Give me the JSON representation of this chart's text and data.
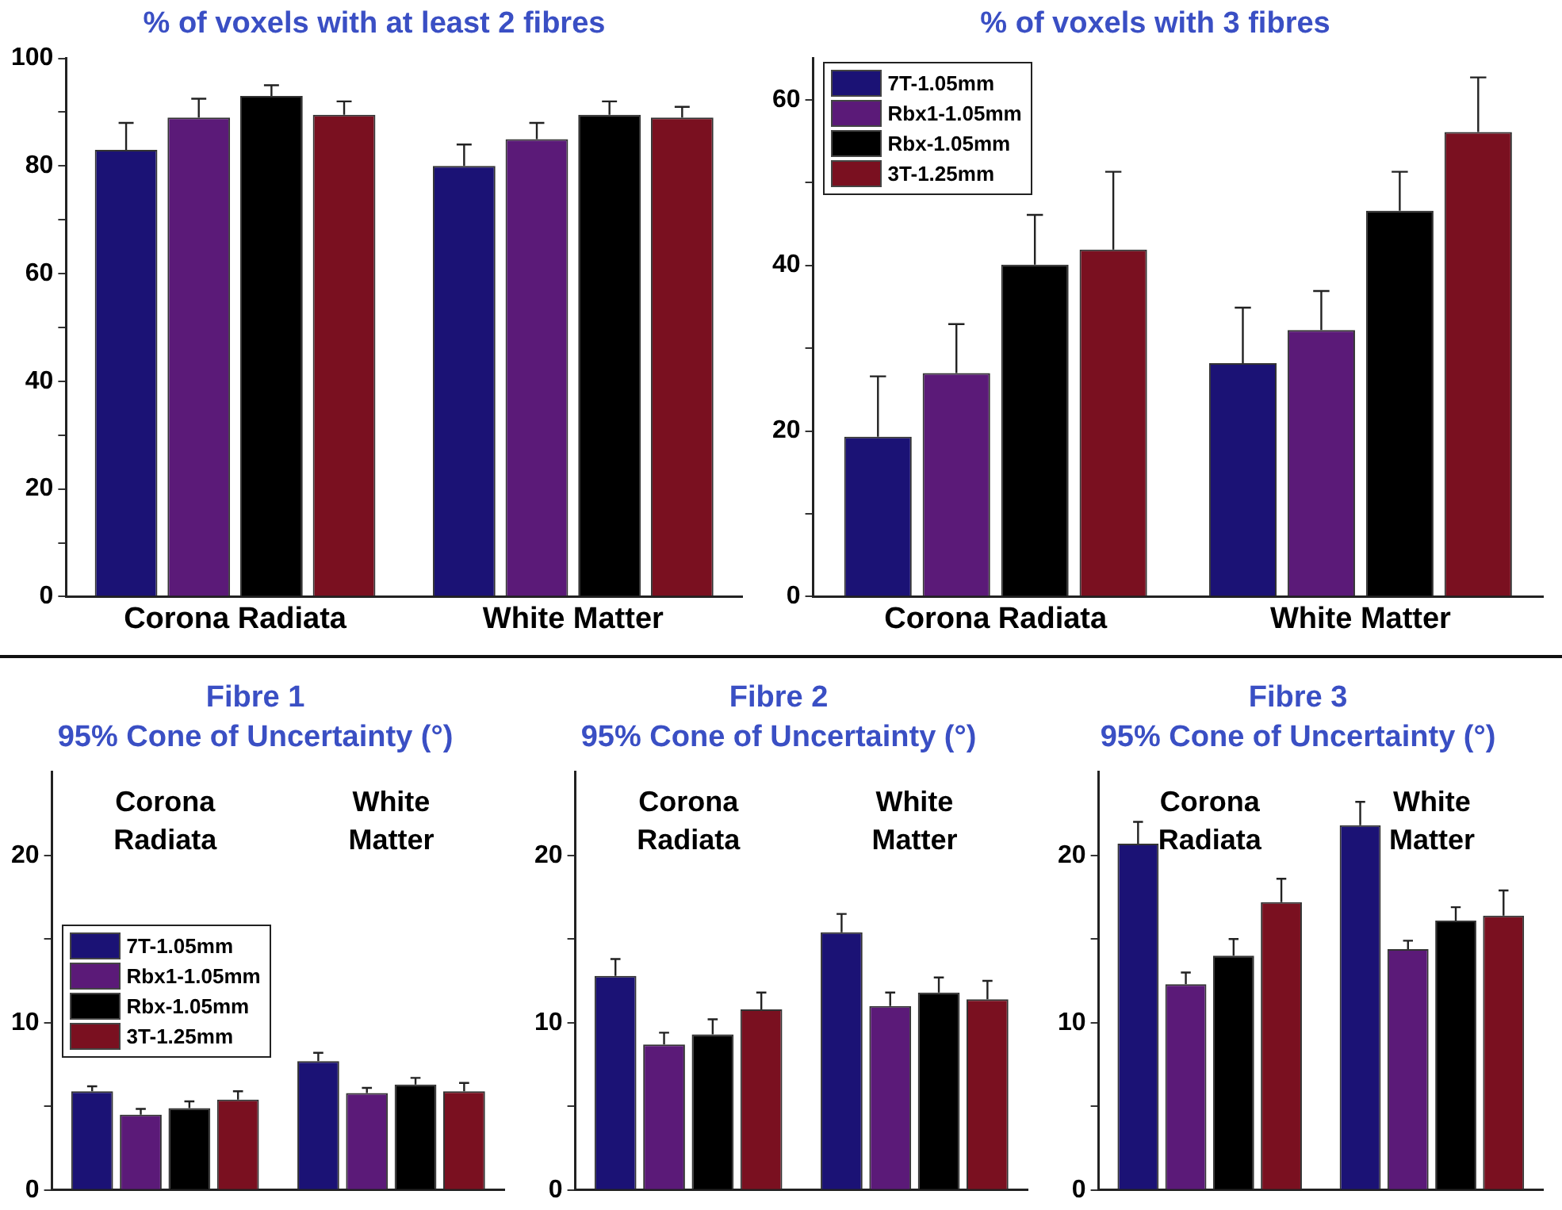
{
  "chart_data": [
    {
      "type": "bar",
      "title": "% of voxels with at least 2 fibres",
      "categories": [
        "Corona Radiata",
        "White Matter"
      ],
      "ylim": [
        0,
        100
      ],
      "yticks": [
        0,
        {
          "value": 10,
          "label": null
        },
        20,
        {
          "value": 30,
          "label": null
        },
        40,
        {
          "value": 50,
          "label": null
        },
        60,
        {
          "value": 70,
          "label": null
        },
        80,
        {
          "value": 90,
          "label": null
        },
        100
      ],
      "grid": false,
      "legend": false,
      "series": [
        {
          "color": "#1b1275",
          "values": [
            83,
            80
          ],
          "errors": [
            [
              83,
              88
            ],
            [
              80,
              84
            ]
          ]
        },
        {
          "color": "#5b1a78",
          "values": [
            89,
            85
          ],
          "errors": [
            [
              89,
              92.5
            ],
            [
              85,
              88
            ]
          ]
        },
        {
          "color": "#000000",
          "values": [
            93,
            89.5
          ],
          "errors": [
            [
              93,
              95
            ],
            [
              89.5,
              92
            ]
          ]
        },
        {
          "color": "#7a1020",
          "values": [
            89.5,
            89
          ],
          "errors": [
            [
              89.5,
              92
            ],
            [
              89,
              91
            ]
          ]
        }
      ]
    },
    {
      "type": "bar",
      "title": "% of voxels with 3 fibres",
      "categories": [
        "Corona Radiata",
        "White Matter"
      ],
      "ylim": [
        0,
        65
      ],
      "yticks": [
        0,
        {
          "value": 10,
          "label": null
        },
        20,
        {
          "value": 30,
          "label": null
        },
        40,
        {
          "value": 50,
          "label": null
        },
        60
      ],
      "grid": false,
      "legend": "top left",
      "series": [
        {
          "name": "7T-1.05mm",
          "color": "#1b1275",
          "values": [
            19.3,
            28.2
          ],
          "errors": [
            [
              19.3,
              26.6
            ],
            [
              28.2,
              34.9
            ]
          ]
        },
        {
          "name": "Rbx1-1.05mm",
          "color": "#5b1a78",
          "values": [
            27,
            32.2
          ],
          "errors": [
            [
              27,
              32.9
            ],
            [
              32.2,
              36.9
            ]
          ]
        },
        {
          "name": "Rbx-1.05mm",
          "color": "#000000",
          "values": [
            40.1,
            46.6
          ],
          "errors": [
            [
              40.1,
              46.1
            ],
            [
              46.6,
              51.3
            ]
          ]
        },
        {
          "name": "3T-1.25mm",
          "color": "#7a1020",
          "values": [
            41.9,
            56.1
          ],
          "errors": [
            [
              41.9,
              51.3
            ],
            [
              56.1,
              62.7
            ]
          ]
        }
      ]
    },
    {
      "type": "bar",
      "title": "Fibre 1",
      "subtitle": "95% Cone of Uncertainty (°)",
      "categories": [
        null,
        null
      ],
      "tick_labels": "y",
      "ylim": [
        0,
        25
      ],
      "yticks": [
        0,
        {
          "value": 5,
          "label": null
        },
        10,
        {
          "value": 15,
          "label": null
        },
        20
      ],
      "grid": false,
      "legend": "left",
      "annotations": [
        "Corona Radiata",
        "White Matter"
      ],
      "series": [
        {
          "name": "7T-1.05mm",
          "color": "#1b1275",
          "values": [
            5.9,
            7.7
          ],
          "errors": [
            [
              5.9,
              6.2
            ],
            [
              7.7,
              8.2
            ]
          ]
        },
        {
          "name": "Rbx1-1.05mm",
          "color": "#5b1a78",
          "values": [
            4.5,
            5.8
          ],
          "errors": [
            [
              4.5,
              4.85
            ],
            [
              5.8,
              6.1
            ]
          ]
        },
        {
          "name": "Rbx-1.05mm",
          "color": "#000000",
          "values": [
            4.9,
            6.3
          ],
          "errors": [
            [
              4.9,
              5.3
            ],
            [
              6.3,
              6.7
            ]
          ]
        },
        {
          "name": "3T-1.25mm",
          "color": "#7a1020",
          "values": [
            5.4,
            5.9
          ],
          "errors": [
            [
              5.4,
              5.9
            ],
            [
              5.9,
              6.4
            ]
          ]
        }
      ]
    },
    {
      "type": "bar",
      "title": "Fibre 2",
      "subtitle": "95% Cone of Uncertainty (°)",
      "categories": [
        null,
        null
      ],
      "tick_labels": "y",
      "ylim": [
        0,
        25
      ],
      "yticks": [
        0,
        {
          "value": 5,
          "label": null
        },
        10,
        {
          "value": 15,
          "label": null
        },
        20
      ],
      "grid": false,
      "legend": false,
      "annotations": [
        "Corona Radiata",
        "White Matter"
      ],
      "series": [
        {
          "color": "#1b1275",
          "values": [
            12.8,
            15.4
          ],
          "errors": [
            [
              12.8,
              13.8
            ],
            [
              15.4,
              16.5
            ]
          ]
        },
        {
          "color": "#5b1a78",
          "values": [
            8.7,
            11
          ],
          "errors": [
            [
              8.7,
              9.4
            ],
            [
              11,
              11.8
            ]
          ]
        },
        {
          "color": "#000000",
          "values": [
            9.3,
            11.8
          ],
          "errors": [
            [
              9.3,
              10.2
            ],
            [
              11.8,
              12.7
            ]
          ]
        },
        {
          "color": "#7a1020",
          "values": [
            10.8,
            11.4
          ],
          "errors": [
            [
              10.8,
              11.8
            ],
            [
              11.4,
              12.5
            ]
          ]
        }
      ]
    },
    {
      "type": "bar",
      "title": "Fibre 3",
      "subtitle": "95% Cone of Uncertainty (°)",
      "categories": [
        null,
        null
      ],
      "tick_labels": "y",
      "ylim": [
        0,
        25
      ],
      "yticks": [
        0,
        {
          "value": 5,
          "label": null
        },
        10,
        {
          "value": 15,
          "label": null
        },
        20
      ],
      "grid": false,
      "legend": false,
      "annotations": [
        "Corona Radiata",
        "White Matter"
      ],
      "series": [
        {
          "color": "#1b1275",
          "values": [
            20.7,
            21.8
          ],
          "errors": [
            [
              20.7,
              22
            ],
            [
              21.8,
              23.2
            ]
          ]
        },
        {
          "color": "#5b1a78",
          "values": [
            12.3,
            14.4
          ],
          "errors": [
            [
              12.3,
              13
            ],
            [
              14.4,
              14.9
            ]
          ]
        },
        {
          "color": "#000000",
          "values": [
            14,
            16.1
          ],
          "errors": [
            [
              14,
              15
            ],
            [
              16.1,
              16.9
            ]
          ]
        },
        {
          "color": "#7a1020",
          "values": [
            17.2,
            16.4
          ],
          "errors": [
            [
              17.2,
              18.6
            ],
            [
              16.4,
              17.9
            ]
          ]
        }
      ]
    }
  ]
}
